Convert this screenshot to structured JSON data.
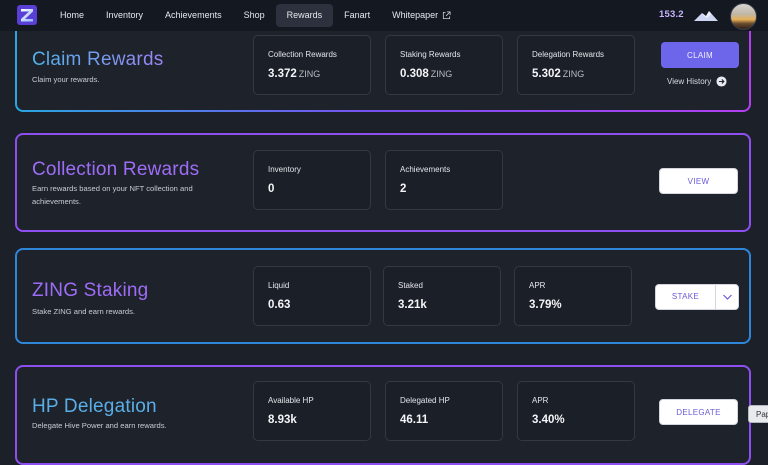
{
  "nav": {
    "items": [
      {
        "label": "Home"
      },
      {
        "label": "Inventory"
      },
      {
        "label": "Achievements"
      },
      {
        "label": "Shop"
      },
      {
        "label": "Rewards",
        "active": true
      },
      {
        "label": "Fanart"
      },
      {
        "label": "Whitepaper",
        "icon": "external-link-icon"
      }
    ],
    "balance": "153.2",
    "balance_icon": "mountain-icon",
    "logo_icon": "zing-logo-icon",
    "avatar_icon": "user-avatar"
  },
  "claim": {
    "title": "Claim Rewards",
    "description": "Claim your rewards.",
    "stats": [
      {
        "label": "Collection Rewards",
        "value": "3.372",
        "unit": "ZING"
      },
      {
        "label": "Staking Rewards",
        "value": "0.308",
        "unit": "ZING"
      },
      {
        "label": "Delegation Rewards",
        "value": "5.302",
        "unit": "ZING"
      }
    ],
    "button": "CLAIM",
    "history_link": "View History",
    "history_icon": "arrow-right-circle-icon"
  },
  "collection": {
    "title": "Collection Rewards",
    "description": "Earn rewards based on your NFT collection and achievements.",
    "stats": [
      {
        "label": "Inventory",
        "value": "0"
      },
      {
        "label": "Achievements",
        "value": "2"
      }
    ],
    "button": "VIEW"
  },
  "staking": {
    "title": "ZING Staking",
    "description": "Stake ZING and earn rewards.",
    "stats": [
      {
        "label": "Liquid",
        "value": "0.63"
      },
      {
        "label": "Staked",
        "value": "3.21k"
      },
      {
        "label": "APR",
        "value": "3.79%"
      }
    ],
    "button": "STAKE",
    "dropdown_icon": "chevron-down-icon"
  },
  "delegation": {
    "title": "HP Delegation",
    "description": "Delegate Hive Power and earn rewards.",
    "stats": [
      {
        "label": "Available HP",
        "value": "8.93k"
      },
      {
        "label": "Delegated HP",
        "value": "46.11"
      },
      {
        "label": "APR",
        "value": "3.40%"
      }
    ],
    "button": "DELEGATE"
  },
  "corner_chip": "Pap",
  "colors": {
    "accent": "#6e66ea",
    "purple_border": "#8e4ff0",
    "blue_border": "#2f86d8",
    "background": "#1c2029"
  }
}
